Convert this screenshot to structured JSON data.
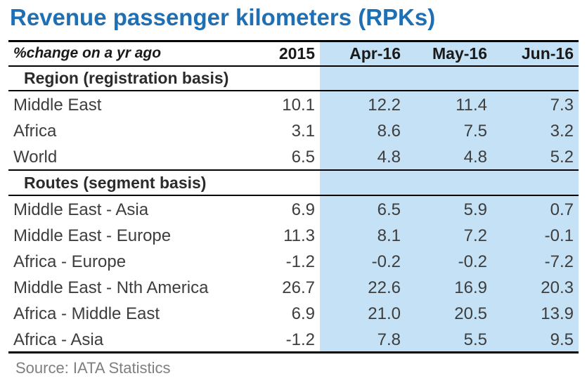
{
  "title": "Revenue passenger kilometers (RPKs)",
  "header": {
    "subtitle": "%change on a yr ago",
    "col_2015": "2015",
    "col_1": "Apr-16",
    "col_2": "May-16",
    "col_3": "Jun-16"
  },
  "sections": [
    {
      "title": "Region (registration basis)",
      "rows": [
        {
          "label": "Middle East",
          "v2015": "10.1",
          "v1": "12.2",
          "v2": "11.4",
          "v3": "7.3"
        },
        {
          "label": "Africa",
          "v2015": "3.1",
          "v1": "8.6",
          "v2": "7.5",
          "v3": "3.2"
        },
        {
          "label": "World",
          "v2015": "6.5",
          "v1": "4.8",
          "v2": "4.8",
          "v3": "5.2"
        }
      ]
    },
    {
      "title": "Routes (segment basis)",
      "rows": [
        {
          "label": "Middle East - Asia",
          "v2015": "6.9",
          "v1": "6.5",
          "v2": "5.9",
          "v3": "0.7"
        },
        {
          "label": "Middle East - Europe",
          "v2015": "11.3",
          "v1": "8.1",
          "v2": "7.2",
          "v3": "-0.1"
        },
        {
          "label": "Africa - Europe",
          "v2015": "-1.2",
          "v1": "-0.2",
          "v2": "-0.2",
          "v3": "-7.2"
        },
        {
          "label": "Middle East - Nth America",
          "v2015": "26.7",
          "v1": "22.6",
          "v2": "16.9",
          "v3": "20.3"
        },
        {
          "label": "Africa - Middle East",
          "v2015": "6.9",
          "v1": "21.0",
          "v2": "20.5",
          "v3": "13.9"
        },
        {
          "label": "Africa - Asia",
          "v2015": "-1.2",
          "v1": "7.8",
          "v2": "5.5",
          "v3": "9.5"
        }
      ]
    }
  ],
  "source": "Source: IATA Statistics",
  "colors": {
    "title": "#1f6fb5",
    "shade": "#c5e1f5",
    "text": "#3d3d3d",
    "source": "#7f7f7f"
  }
}
